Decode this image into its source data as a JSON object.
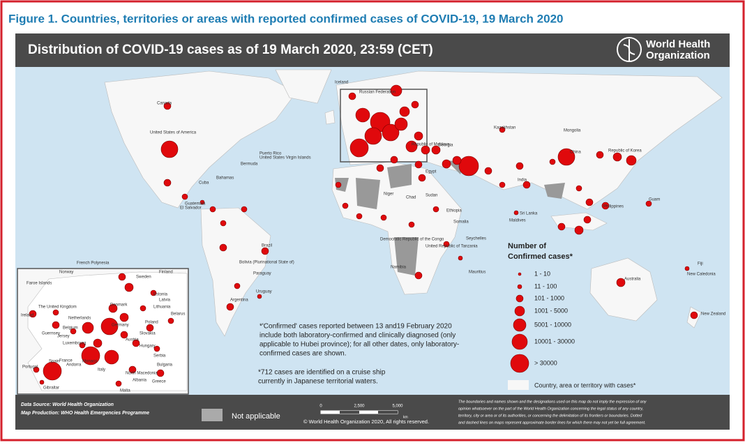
{
  "figure_title": "Figure 1. Countries, territories or areas with reported confirmed cases of COVID-19, 19 March 2020",
  "header": {
    "title": "Distribution of COVID-19  cases as of 19 March 2020, 23:59 (CET)",
    "org": [
      "World Health",
      "Organization"
    ]
  },
  "legend": {
    "title": [
      "Number of",
      "Confirmed cases*"
    ],
    "items": [
      "1 - 10",
      "11 - 100",
      "101 - 1000",
      "1001 - 5000",
      "5001 - 10000",
      "10001 - 30000",
      "> 30000"
    ],
    "applicable": "Country, area or territory with cases*"
  },
  "notes": [
    [
      "*'Confirmed' cases reported between 13 and19 February 2020",
      "include both laboratory-confirmed and clinically diagnosed (only",
      "applicable to Hubei province); for all other dates, only laboratory-",
      "confirmed cases are shown."
    ],
    [
      "*712 cases are identified on a cruise ship",
      "currently in Japanese territorial waters."
    ]
  ],
  "footer": {
    "data_source": "Data Source: World Health Organization",
    "map_production": "Map Production: WHO Health Emergencies Programme",
    "not_applicable": "Not applicable",
    "scale": [
      "0",
      "2,500",
      "5,000",
      "km"
    ],
    "copyright": "© World Health Organization 2020, All rights reserved.",
    "disclaimer": [
      "The boundaries and names shown and the designations used on this map do not imply the expression of any",
      "opinion whatsoever on the part of the World Health Organization concerning the legal status of any country,",
      "territory, city or area or of its authorities, or concerning the delimitation of its frontiers or boundaries. Dotted",
      "and dashed lines on maps represent approximate border lines for which there may not yet be full agreement."
    ]
  },
  "map_labels": [
    "Canada",
    "United States of America",
    "Russian Federation",
    "Mongolia",
    "Kazakhstan",
    "China",
    "Republic of Korea",
    "India",
    "Sri Lanka",
    "Maldives",
    "Philippines",
    "Guam",
    "Australia",
    "New Zealand",
    "New Caledonia",
    "Fiji",
    "Brazil",
    "Bolivia (Plurinational State of)",
    "Paraguay",
    "Argentina",
    "Uruguay",
    "French Polynesia",
    "Iceland",
    "Cuba",
    "Bahamas",
    "Bermuda",
    "Puerto Rico",
    "United States Virgin Islands",
    "Guatemala",
    "El Salvador",
    "Egypt",
    "Niger",
    "Chad",
    "Sudan",
    "Ethiopia",
    "Somalia",
    "Democratic Republic of the Congo",
    "United Republic of Tanzania",
    "Seychelles",
    "Mauritius",
    "Namibia",
    "Republic of Moldova",
    "Georgia"
  ],
  "inset_labels": [
    "Faroe Islands",
    "Norway",
    "Sweden",
    "Finland",
    "Estonia",
    "Latvia",
    "Lithuania",
    "Denmark",
    "The United Kingdom",
    "Ireland",
    "Netherlands",
    "Belgium",
    "Guernsey",
    "Jersey",
    "Luxembourg",
    "Germany",
    "Poland",
    "Belarus",
    "France",
    "Austria",
    "Slovakia",
    "Hungary",
    "Serbia",
    "Bulgaria",
    "Monaco",
    "Andorra",
    "Italy",
    "North Macedonia",
    "Albania",
    "Greece",
    "Spain",
    "Portugal",
    "Gibraltar",
    "Malta"
  ]
}
